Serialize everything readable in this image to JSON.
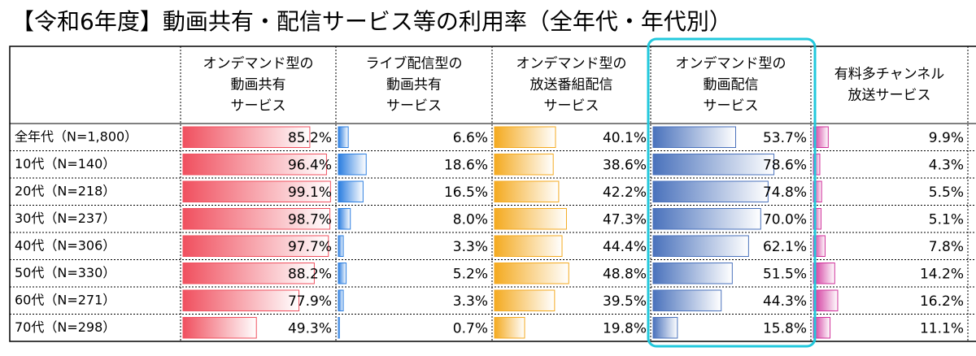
{
  "title": "【令和6年度】動画共有・配信サービス等の利用率（全年代・年代別）",
  "table": {
    "bar_range": [
      0,
      100
    ],
    "rows": [
      "全年代（N=1,800）",
      "10代（N=140）",
      "20代（N=218）",
      "30代（N=237）",
      "40代（N=306）",
      "50代（N=330）",
      "60代（N=271）",
      "70代（N=298）"
    ],
    "columns": [
      {
        "header": [
          "オンデマンド型の",
          "動画共有",
          "サービス"
        ],
        "color": "#f0505f",
        "values": [
          85.2,
          96.4,
          99.1,
          98.7,
          97.7,
          88.2,
          77.9,
          49.3
        ],
        "value_labels": [
          "85.2%",
          "96.4%",
          "99.1%",
          "98.7%",
          "97.7%",
          "88.2%",
          "77.9%",
          "49.3%"
        ]
      },
      {
        "header": [
          "ライブ配信型の",
          "動画共有",
          "サービス"
        ],
        "color": "#2a7de0",
        "values": [
          6.6,
          18.6,
          16.5,
          8.0,
          3.3,
          5.2,
          3.3,
          0.7
        ],
        "value_labels": [
          "6.6%",
          "18.6%",
          "16.5%",
          "8.0%",
          "3.3%",
          "5.2%",
          "3.3%",
          "0.7%"
        ]
      },
      {
        "header": [
          "オンデマンド型の",
          "放送番組配信",
          "サービス"
        ],
        "color": "#f4aa20",
        "values": [
          40.1,
          38.6,
          42.2,
          47.3,
          44.4,
          48.8,
          39.5,
          19.8
        ],
        "value_labels": [
          "40.1%",
          "38.6%",
          "42.2%",
          "47.3%",
          "44.4%",
          "48.8%",
          "39.5%",
          "19.8%"
        ]
      },
      {
        "header": [
          "オンデマンド型の",
          "動画配信",
          "サービス"
        ],
        "color": "#4a72bc",
        "values": [
          53.7,
          78.6,
          74.8,
          70.0,
          62.1,
          51.5,
          44.3,
          15.8
        ],
        "value_labels": [
          "53.7%",
          "78.6%",
          "74.8%",
          "70.0%",
          "62.1%",
          "51.5%",
          "44.3%",
          "15.8%"
        ]
      },
      {
        "header": [
          "有料多チャンネル",
          "放送サービス"
        ],
        "color": "#d0309a",
        "values": [
          9.9,
          4.3,
          5.5,
          5.1,
          7.8,
          14.2,
          16.2,
          11.1
        ],
        "value_labels": [
          "9.9%",
          "4.3%",
          "5.5%",
          "5.1%",
          "7.8%",
          "14.2%",
          "16.2%",
          "11.1%"
        ]
      }
    ]
  }
}
